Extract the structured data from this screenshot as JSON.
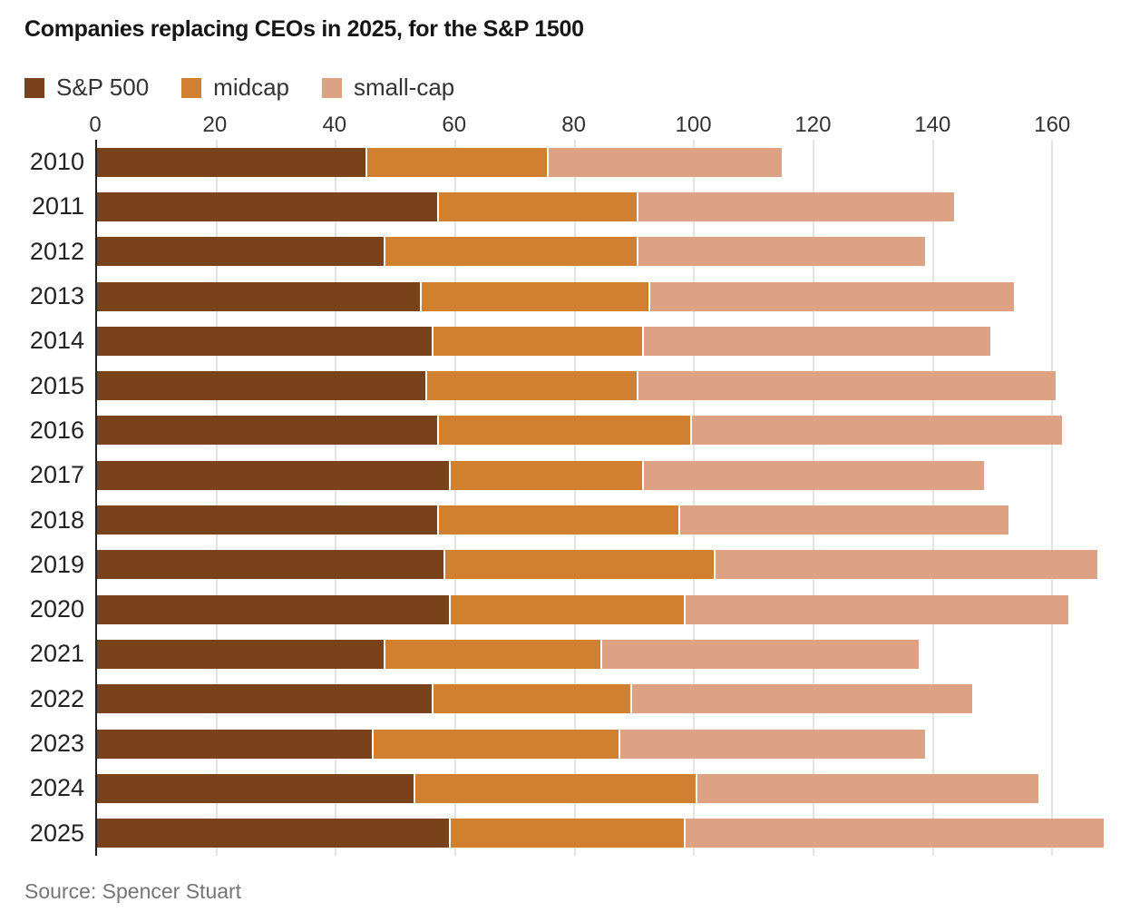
{
  "title": "Companies replacing CEOs in 2025, for the S&P 1500",
  "source": "Source: Spencer Stuart",
  "colors": {
    "sp500": "#79421B",
    "midcap": "#D0802F",
    "smallcap": "#DDA183",
    "grid": "#E3E3E3",
    "axis": "#222222"
  },
  "legend": [
    {
      "label": "S&P 500",
      "color": "#79421B"
    },
    {
      "label": "midcap",
      "color": "#D0802F"
    },
    {
      "label": "small-cap",
      "color": "#DDA183"
    }
  ],
  "chart_data": {
    "type": "bar",
    "orientation": "horizontal",
    "stacked": true,
    "title": "Companies replacing CEOs in 2025, for the S&P 1500",
    "categories": [
      "2010",
      "2011",
      "2012",
      "2013",
      "2014",
      "2015",
      "2016",
      "2017",
      "2018",
      "2019",
      "2020",
      "2021",
      "2022",
      "2023",
      "2024",
      "2025"
    ],
    "series": [
      {
        "name": "S&P 500",
        "color": "#79421B",
        "values": [
          45,
          57,
          48,
          54,
          56,
          55,
          57,
          59,
          57,
          58,
          59,
          48,
          56,
          46,
          53,
          59
        ]
      },
      {
        "name": "midcap",
        "color": "#D0802F",
        "values": [
          30,
          33,
          42,
          38,
          35,
          35,
          42,
          32,
          40,
          45,
          39,
          36,
          33,
          41,
          47,
          39
        ]
      },
      {
        "name": "small-cap",
        "color": "#DDA183",
        "values": [
          39,
          53,
          48,
          61,
          58,
          70,
          62,
          57,
          55,
          64,
          64,
          53,
          57,
          51,
          57,
          70
        ]
      }
    ],
    "totals": [
      114,
      143,
      138,
      153,
      149,
      160,
      161,
      148,
      152,
      167,
      162,
      137,
      146,
      138,
      157,
      168
    ],
    "x_ticks": [
      0,
      20,
      40,
      60,
      80,
      100,
      120,
      140,
      160
    ],
    "xlim": [
      0,
      173
    ],
    "grid": true,
    "legend_position": "top",
    "source": "Source: Spencer Stuart"
  }
}
